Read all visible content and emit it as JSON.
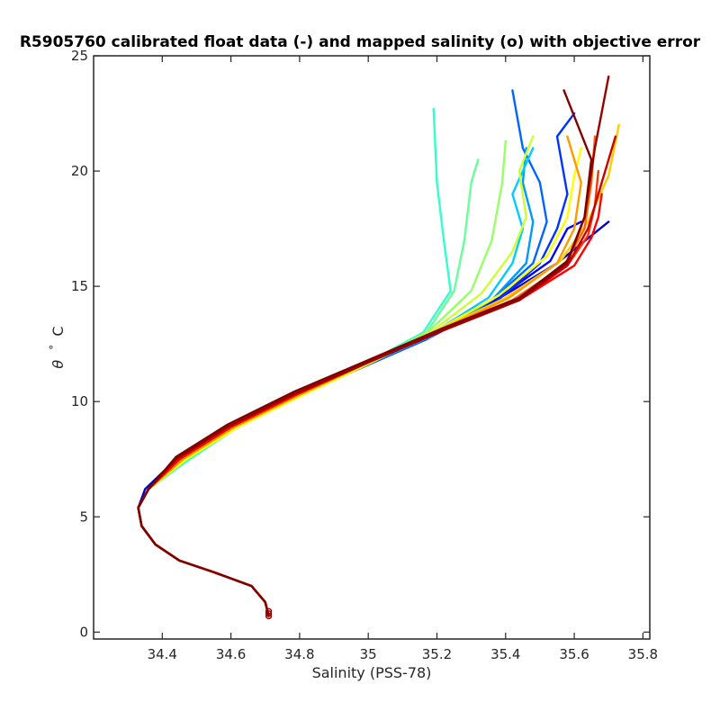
{
  "chart_data": {
    "type": "line",
    "title": "R5905760 calibrated float data (-) and mapped salinity (o) with objective error",
    "xlabel": "Salinity (PSS-78)",
    "ylabel_symbol": "θ",
    "ylabel_degree": "°",
    "ylabel_unit": "C",
    "xlim": [
      34.2,
      35.82
    ],
    "ylim": [
      -0.3,
      25
    ],
    "xticks": [
      {
        "value": 34.4,
        "label": "34.4"
      },
      {
        "value": 34.6,
        "label": "34.6"
      },
      {
        "value": 34.8,
        "label": "34.8"
      },
      {
        "value": 35.0,
        "label": "35"
      },
      {
        "value": 35.2,
        "label": "35.2"
      },
      {
        "value": 35.4,
        "label": "35.4"
      },
      {
        "value": 35.6,
        "label": "35.6"
      },
      {
        "value": 35.8,
        "label": "35.8"
      }
    ],
    "yticks": [
      {
        "value": 0,
        "label": "0"
      },
      {
        "value": 5,
        "label": "5"
      },
      {
        "value": 10,
        "label": "10"
      },
      {
        "value": 15,
        "label": "15"
      },
      {
        "value": 20,
        "label": "20"
      },
      {
        "value": 25,
        "label": "25"
      }
    ],
    "grid": false,
    "colormap": "jet",
    "series": [
      {
        "color": "#0000cc",
        "x": [
          34.71,
          34.7,
          34.66,
          34.55,
          34.45,
          34.38,
          34.34,
          34.33,
          34.35,
          34.42,
          34.55,
          34.75,
          34.95,
          35.15,
          35.35,
          35.55,
          35.7
        ],
        "y": [
          0.7,
          1.3,
          2.0,
          2.6,
          3.1,
          3.8,
          4.6,
          5.4,
          6.2,
          7.2,
          8.6,
          10.0,
          11.3,
          12.6,
          14.2,
          16.0,
          17.8
        ]
      },
      {
        "color": "#0000ff",
        "x": [
          34.71,
          34.7,
          34.66,
          34.55,
          34.45,
          34.38,
          34.34,
          34.33,
          34.36,
          34.44,
          34.57,
          34.76,
          34.96,
          35.16,
          35.36,
          35.53,
          35.58,
          35.62
        ],
        "y": [
          0.7,
          1.3,
          2.0,
          2.6,
          3.1,
          3.8,
          4.6,
          5.4,
          6.2,
          7.3,
          8.7,
          10.1,
          11.4,
          12.7,
          14.3,
          16.1,
          17.5,
          17.8
        ]
      },
      {
        "color": "#0033ff",
        "x": [
          34.71,
          34.7,
          34.66,
          34.55,
          34.45,
          34.38,
          34.34,
          34.33,
          34.36,
          34.45,
          34.58,
          34.77,
          34.97,
          35.17,
          35.37,
          35.5,
          35.55,
          35.58,
          35.55,
          35.6
        ],
        "y": [
          0.7,
          1.3,
          2.0,
          2.6,
          3.1,
          3.8,
          4.6,
          5.4,
          6.2,
          7.3,
          8.7,
          10.1,
          11.4,
          12.7,
          14.3,
          16.0,
          17.5,
          19.0,
          21.5,
          22.5
        ]
      },
      {
        "color": "#0066ff",
        "x": [
          34.71,
          34.7,
          34.66,
          34.55,
          34.45,
          34.38,
          34.34,
          34.33,
          34.36,
          34.45,
          34.58,
          34.77,
          34.97,
          35.17,
          35.36,
          35.48,
          35.52,
          35.5,
          35.45,
          35.42
        ],
        "y": [
          0.7,
          1.3,
          2.0,
          2.6,
          3.1,
          3.8,
          4.6,
          5.4,
          6.2,
          7.3,
          8.7,
          10.1,
          11.5,
          12.8,
          14.4,
          16.0,
          17.8,
          19.5,
          21.0,
          23.5
        ]
      },
      {
        "color": "#0099ff",
        "x": [
          34.71,
          34.7,
          34.66,
          34.55,
          34.45,
          34.38,
          34.34,
          34.33,
          34.36,
          34.46,
          34.59,
          34.78,
          34.98,
          35.18,
          35.36,
          35.46,
          35.48,
          35.45,
          35.46
        ],
        "y": [
          0.7,
          1.3,
          2.0,
          2.6,
          3.1,
          3.8,
          4.6,
          5.4,
          6.2,
          7.4,
          8.8,
          10.2,
          11.5,
          12.8,
          14.4,
          16.0,
          17.8,
          19.5,
          21.0
        ]
      },
      {
        "color": "#00ccff",
        "x": [
          34.71,
          34.7,
          34.66,
          34.55,
          34.45,
          34.38,
          34.34,
          34.33,
          34.36,
          34.46,
          34.6,
          34.79,
          34.99,
          35.18,
          35.35,
          35.42,
          35.45,
          35.42,
          35.48
        ],
        "y": [
          0.7,
          1.3,
          2.0,
          2.6,
          3.1,
          3.8,
          4.6,
          5.4,
          6.2,
          7.4,
          8.8,
          10.2,
          11.6,
          12.9,
          14.5,
          16.0,
          17.5,
          19.0,
          21.0
        ]
      },
      {
        "color": "#33ffcc",
        "x": [
          34.71,
          34.7,
          34.66,
          34.55,
          34.45,
          34.38,
          34.34,
          34.33,
          34.36,
          34.47,
          34.61,
          34.8,
          35.0,
          35.16,
          35.24,
          35.22,
          35.2,
          35.19
        ],
        "y": [
          0.7,
          1.3,
          2.0,
          2.6,
          3.1,
          3.8,
          4.6,
          5.4,
          6.2,
          7.4,
          8.8,
          10.3,
          11.7,
          13.0,
          14.8,
          17.0,
          19.5,
          22.7
        ]
      },
      {
        "color": "#66ff99",
        "x": [
          34.71,
          34.7,
          34.66,
          34.55,
          34.45,
          34.38,
          34.34,
          34.33,
          34.36,
          34.47,
          34.62,
          34.81,
          35.0,
          35.17,
          35.25,
          35.28,
          35.3,
          35.32
        ],
        "y": [
          0.7,
          1.3,
          2.0,
          2.6,
          3.1,
          3.8,
          4.6,
          5.4,
          6.2,
          7.5,
          8.9,
          10.3,
          11.7,
          13.0,
          14.8,
          17.0,
          19.5,
          20.5
        ]
      },
      {
        "color": "#99ff66",
        "x": [
          34.71,
          34.7,
          34.66,
          34.55,
          34.45,
          34.38,
          34.34,
          34.33,
          34.36,
          34.47,
          34.62,
          34.81,
          35.01,
          35.18,
          35.3,
          35.36,
          35.39,
          35.4
        ],
        "y": [
          0.7,
          1.3,
          2.0,
          2.6,
          3.1,
          3.8,
          4.6,
          5.4,
          6.2,
          7.5,
          8.9,
          10.3,
          11.7,
          13.1,
          14.8,
          17.0,
          19.5,
          21.3
        ]
      },
      {
        "color": "#ccff33",
        "x": [
          34.71,
          34.7,
          34.66,
          34.55,
          34.45,
          34.38,
          34.34,
          34.33,
          34.36,
          34.47,
          34.62,
          34.81,
          35.01,
          35.19,
          35.33,
          35.42,
          35.46,
          35.44,
          35.48
        ],
        "y": [
          0.7,
          1.3,
          2.0,
          2.6,
          3.1,
          3.8,
          4.6,
          5.4,
          6.2,
          7.5,
          8.9,
          10.3,
          11.7,
          13.1,
          14.7,
          16.5,
          18.0,
          20.0,
          21.5
        ]
      },
      {
        "color": "#ffff00",
        "x": [
          34.71,
          34.7,
          34.66,
          34.55,
          34.45,
          34.38,
          34.34,
          34.33,
          34.36,
          34.47,
          34.62,
          34.81,
          35.01,
          35.2,
          35.38,
          35.52,
          35.58,
          35.6,
          35.62
        ],
        "y": [
          0.7,
          1.3,
          2.0,
          2.6,
          3.1,
          3.8,
          4.6,
          5.4,
          6.2,
          7.5,
          8.9,
          10.3,
          11.7,
          13.1,
          14.6,
          16.3,
          18.0,
          19.8,
          21.0
        ]
      },
      {
        "color": "#ffcc00",
        "x": [
          34.71,
          34.7,
          34.66,
          34.55,
          34.45,
          34.38,
          34.34,
          34.33,
          34.36,
          34.46,
          34.61,
          34.8,
          35.0,
          35.2,
          35.4,
          35.56,
          35.64,
          35.7,
          35.73
        ],
        "y": [
          0.7,
          1.3,
          2.0,
          2.6,
          3.1,
          3.8,
          4.6,
          5.4,
          6.2,
          7.5,
          8.9,
          10.3,
          11.7,
          13.1,
          14.5,
          16.1,
          17.8,
          19.8,
          22.0
        ]
      },
      {
        "color": "#ff9900",
        "x": [
          34.71,
          34.7,
          34.66,
          34.55,
          34.45,
          34.38,
          34.34,
          34.33,
          34.36,
          34.46,
          34.61,
          34.8,
          35.0,
          35.21,
          35.41,
          35.55,
          35.6,
          35.62,
          35.58
        ],
        "y": [
          0.7,
          1.3,
          2.0,
          2.6,
          3.1,
          3.8,
          4.6,
          5.4,
          6.2,
          7.5,
          8.9,
          10.3,
          11.7,
          13.1,
          14.5,
          16.0,
          17.5,
          19.5,
          21.5
        ]
      },
      {
        "color": "#ff6600",
        "x": [
          34.71,
          34.7,
          34.66,
          34.55,
          34.45,
          34.38,
          34.34,
          34.33,
          34.36,
          34.45,
          34.6,
          34.79,
          34.99,
          35.21,
          35.42,
          35.57,
          35.63,
          35.65,
          35.66
        ],
        "y": [
          0.7,
          1.3,
          2.0,
          2.6,
          3.1,
          3.8,
          4.6,
          5.4,
          6.2,
          7.5,
          8.9,
          10.3,
          11.7,
          13.1,
          14.4,
          15.9,
          17.5,
          19.5,
          21.5
        ]
      },
      {
        "color": "#ff3300",
        "x": [
          34.71,
          34.7,
          34.66,
          34.55,
          34.45,
          34.38,
          34.34,
          34.33,
          34.36,
          34.45,
          34.6,
          34.79,
          35.0,
          35.22,
          35.43,
          35.58,
          35.64,
          35.66,
          35.67
        ],
        "y": [
          0.7,
          1.3,
          2.0,
          2.6,
          3.1,
          3.8,
          4.6,
          5.4,
          6.2,
          7.5,
          8.9,
          10.3,
          11.7,
          13.1,
          14.4,
          15.9,
          17.2,
          18.5,
          20.0
        ]
      },
      {
        "color": "#ff0000",
        "x": [
          34.71,
          34.7,
          34.66,
          34.55,
          34.45,
          34.38,
          34.34,
          34.33,
          34.36,
          34.45,
          34.6,
          34.79,
          35.0,
          35.22,
          35.44,
          35.6,
          35.65,
          35.67,
          35.68
        ],
        "y": [
          0.7,
          1.3,
          2.0,
          2.6,
          3.1,
          3.8,
          4.6,
          5.4,
          6.2,
          7.5,
          8.9,
          10.3,
          11.7,
          13.1,
          14.4,
          15.9,
          17.1,
          18.0,
          19.0
        ]
      },
      {
        "color": "#cc0000",
        "x": [
          34.71,
          34.7,
          34.66,
          34.55,
          34.45,
          34.38,
          34.34,
          34.33,
          34.36,
          34.44,
          34.59,
          34.78,
          35.0,
          35.22,
          35.44,
          35.58,
          35.64,
          35.68,
          35.72
        ],
        "y": [
          0.7,
          1.3,
          2.0,
          2.6,
          3.1,
          3.8,
          4.6,
          5.4,
          6.2,
          7.5,
          8.9,
          10.3,
          11.7,
          13.1,
          14.4,
          15.9,
          17.5,
          19.5,
          21.5
        ]
      },
      {
        "color": "#990000",
        "x": [
          34.71,
          34.7,
          34.66,
          34.55,
          34.45,
          34.38,
          34.34,
          34.33,
          34.36,
          34.44,
          34.59,
          34.78,
          35.0,
          35.22,
          35.44,
          35.58,
          35.63,
          35.66,
          35.7
        ],
        "y": [
          0.7,
          1.3,
          2.0,
          2.6,
          3.1,
          3.8,
          4.6,
          5.4,
          6.2,
          7.5,
          8.9,
          10.3,
          11.7,
          13.1,
          14.4,
          16.0,
          18.0,
          21.0,
          24.1
        ]
      },
      {
        "color": "#800000",
        "x": [
          34.71,
          34.7,
          34.66,
          34.55,
          34.45,
          34.38,
          34.34,
          34.33,
          34.36,
          34.44,
          34.59,
          34.78,
          35.0,
          35.22,
          35.44,
          35.58,
          35.63,
          35.65,
          35.57
        ],
        "y": [
          0.7,
          1.3,
          2.0,
          2.6,
          3.1,
          3.8,
          4.6,
          5.4,
          6.2,
          7.6,
          9.0,
          10.4,
          11.8,
          13.2,
          14.5,
          16.1,
          18.0,
          20.5,
          23.5
        ]
      }
    ],
    "mapped_points": [
      {
        "x": 34.71,
        "y": 0.7
      },
      {
        "x": 34.71,
        "y": 0.8
      },
      {
        "x": 34.71,
        "y": 0.9
      }
    ]
  }
}
